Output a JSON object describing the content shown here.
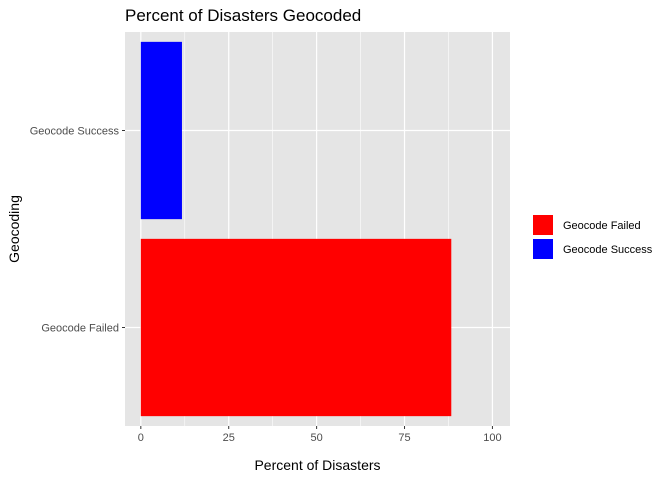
{
  "chart_data": {
    "type": "bar",
    "orientation": "horizontal",
    "title": "Percent of Disasters Geocoded",
    "xlabel": "Percent of Disasters",
    "ylabel": "Geocoding",
    "categories": [
      "Geocode Failed",
      "Geocode Success"
    ],
    "values": [
      88.3,
      11.7
    ],
    "bar_colors": [
      "#FF0000",
      "#0000FF"
    ],
    "xlim": [
      -4.5,
      105
    ],
    "x_ticks": [
      0,
      25,
      50,
      75,
      100
    ],
    "x_tick_labels": [
      "0",
      "25",
      "50",
      "75",
      "100"
    ],
    "grid": true,
    "panel_background": "#E5E5E5",
    "grid_color": "#FFFFFF",
    "legend": {
      "position": "right",
      "entries": [
        {
          "label": "Geocode Failed",
          "color": "#FF0000"
        },
        {
          "label": "Geocode Success",
          "color": "#0000FF"
        }
      ]
    }
  }
}
